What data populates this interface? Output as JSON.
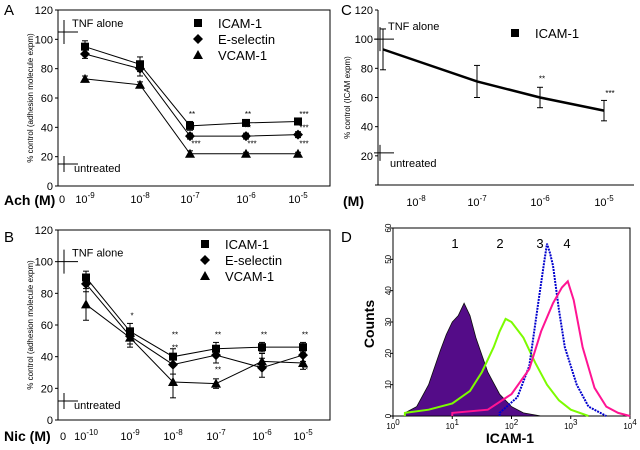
{
  "chart_data": [
    {
      "panel": "A",
      "type": "line",
      "ylabel": "% control (adhesion molecule expm)",
      "xlabel": "Ach (M)",
      "x_tick_labels": [
        {
          "base": "0",
          "exp": ""
        },
        {
          "base": "10",
          "exp": "-9"
        },
        {
          "base": "10",
          "exp": "-8"
        },
        {
          "base": "10",
          "exp": "-7"
        },
        {
          "base": "10",
          "exp": "-6"
        },
        {
          "base": "10",
          "exp": "-5"
        }
      ],
      "y_ticks": [
        0,
        20,
        40,
        60,
        80,
        100,
        120
      ],
      "ylim": [
        0,
        120
      ],
      "x": [
        -9,
        -8,
        -7,
        -6,
        -5
      ],
      "series": [
        {
          "name": "ICAM-1",
          "marker": "square",
          "values": [
            95,
            83,
            41,
            43,
            44
          ],
          "err": [
            4,
            5,
            3,
            2,
            2
          ]
        },
        {
          "name": "E-selectin",
          "marker": "diamond",
          "values": [
            90,
            80,
            34,
            34,
            35
          ],
          "err": [
            3,
            5,
            2,
            2,
            2
          ]
        },
        {
          "name": "VCAM-1",
          "marker": "triangle",
          "values": [
            73,
            69,
            22,
            22,
            22
          ],
          "err": [
            2,
            2,
            2,
            1,
            1
          ]
        }
      ],
      "reference_labels": {
        "tnf_alone": "TNF alone",
        "tnf_value": 105,
        "untreated": "untreated",
        "untreated_value": 15
      },
      "significance": [
        {
          "x": -7,
          "label": "**",
          "at": 47
        },
        {
          "x": -6,
          "label": "**",
          "at": 47
        },
        {
          "x": -5,
          "label": "***",
          "at": 47
        },
        {
          "x": -7,
          "label": "**",
          "at": 38
        },
        {
          "x": -6,
          "label": "**",
          "at": 38
        },
        {
          "x": -5,
          "label": "***",
          "at": 38
        },
        {
          "x": -7,
          "label": "***",
          "at": 27
        },
        {
          "x": -6,
          "label": "***",
          "at": 27
        },
        {
          "x": -5,
          "label": "***",
          "at": 27
        }
      ],
      "legend_position": "top-right"
    },
    {
      "panel": "B",
      "type": "line",
      "ylabel": "% control (adhesion molecule expm)",
      "xlabel": "Nic (M)",
      "x_tick_labels": [
        {
          "base": "0",
          "exp": ""
        },
        {
          "base": "10",
          "exp": "-10"
        },
        {
          "base": "10",
          "exp": "-9"
        },
        {
          "base": "10",
          "exp": "-8"
        },
        {
          "base": "10",
          "exp": "-7"
        },
        {
          "base": "10",
          "exp": "-6"
        },
        {
          "base": "10",
          "exp": "-5"
        }
      ],
      "y_ticks": [
        0,
        20,
        40,
        60,
        80,
        100,
        120
      ],
      "ylim": [
        0,
        120
      ],
      "x": [
        -10,
        -9,
        -8,
        -7,
        -6,
        -5
      ],
      "series": [
        {
          "name": "ICAM-1",
          "marker": "square",
          "values": [
            90,
            56,
            40,
            45,
            46,
            46
          ],
          "err": [
            4,
            5,
            5,
            4,
            3,
            3
          ]
        },
        {
          "name": "E-selectin",
          "marker": "diamond",
          "values": [
            86,
            53,
            35,
            41,
            33,
            41
          ],
          "err": [
            5,
            5,
            6,
            5,
            6,
            4
          ]
        },
        {
          "name": "VCAM-1",
          "marker": "triangle",
          "values": [
            73,
            52,
            24,
            23,
            37,
            36
          ],
          "err": [
            10,
            6,
            10,
            3,
            5,
            4
          ]
        }
      ],
      "reference_labels": {
        "tnf_alone": "TNF alone",
        "tnf_value": 100,
        "untreated": "untreated",
        "untreated_value": 12
      },
      "significance": [
        {
          "x": -9,
          "label": "*",
          "at": 64
        },
        {
          "x": -8,
          "label": "**",
          "at": 52
        },
        {
          "x": -7,
          "label": "**",
          "at": 52
        },
        {
          "x": -6,
          "label": "**",
          "at": 52
        },
        {
          "x": -5,
          "label": "**",
          "at": 52
        },
        {
          "x": -8,
          "label": "**",
          "at": 44
        },
        {
          "x": -7,
          "label": "**",
          "at": 30
        },
        {
          "x": -5,
          "label": "**",
          "at": 30
        }
      ],
      "legend_position": "top-right"
    },
    {
      "panel": "C",
      "type": "line",
      "ylabel": "% control (ICAM expm)",
      "xlabel": "(M)",
      "x_tick_labels": [
        {
          "base": "10",
          "exp": "-8"
        },
        {
          "base": "10",
          "exp": "-7"
        },
        {
          "base": "10",
          "exp": "-6"
        },
        {
          "base": "10",
          "exp": "-5"
        }
      ],
      "y_ticks": [
        0,
        20,
        40,
        60,
        80,
        100,
        120
      ],
      "ylim": [
        0,
        120
      ],
      "x": [
        -8.5,
        -7,
        -6,
        -5
      ],
      "series": [
        {
          "name": "ICAM-1",
          "marker": "square",
          "values": [
            93,
            71,
            60,
            51
          ],
          "err": [
            14,
            11,
            7,
            7
          ]
        }
      ],
      "reference_labels": {
        "tnf_alone": "TNF alone",
        "tnf_value": 100,
        "untreated": "untreated",
        "untreated_value": 22
      },
      "significance": [
        {
          "x": -6,
          "label": "**",
          "at": 71
        },
        {
          "x": -5,
          "label": "***",
          "at": 61
        }
      ],
      "legend_position": "top-right"
    },
    {
      "panel": "D",
      "type": "area",
      "xlabel": "ICAM-1",
      "ylabel": "Counts",
      "x_scale": "log",
      "x_ticks": [
        {
          "base": "10",
          "exp": "0"
        },
        {
          "base": "10",
          "exp": "1"
        },
        {
          "base": "10",
          "exp": "2"
        },
        {
          "base": "10",
          "exp": "3"
        },
        {
          "base": "10",
          "exp": "4"
        }
      ],
      "y_ticks": [
        0,
        10,
        20,
        30,
        40,
        50,
        60
      ],
      "ylim": [
        0,
        60
      ],
      "histograms": [
        {
          "label": "1",
          "color": "#4b0082",
          "fill": true,
          "log_x": [
            0.2,
            0.4,
            0.6,
            0.8,
            0.9,
            1.0,
            1.1,
            1.2,
            1.3,
            1.4,
            1.6,
            1.8,
            2.0,
            2.2,
            2.5
          ],
          "counts": [
            1,
            3,
            10,
            21,
            26,
            30,
            32,
            36,
            32,
            25,
            14,
            7,
            3,
            1,
            0
          ]
        },
        {
          "label": "2",
          "color": "#7cfc00",
          "fill": false,
          "log_x": [
            0.2,
            0.6,
            1.0,
            1.3,
            1.5,
            1.7,
            1.8,
            1.9,
            2.0,
            2.2,
            2.4,
            2.6,
            2.8,
            3.0,
            3.3
          ],
          "counts": [
            1,
            2,
            4,
            8,
            14,
            22,
            27,
            31,
            30,
            25,
            17,
            10,
            5,
            2,
            0
          ]
        },
        {
          "label": "3",
          "color": "#0000cd",
          "fill": false,
          "log_x": [
            1.8,
            2.1,
            2.3,
            2.45,
            2.55,
            2.6,
            2.65,
            2.7,
            2.8,
            2.9,
            3.1,
            3.3,
            3.6
          ],
          "counts": [
            1,
            6,
            16,
            36,
            49,
            55,
            52,
            48,
            34,
            22,
            10,
            3,
            0
          ]
        },
        {
          "label": "4",
          "color": "#ff1493",
          "fill": false,
          "log_x": [
            1.0,
            1.6,
            2.0,
            2.3,
            2.5,
            2.7,
            2.85,
            2.95,
            3.05,
            3.2,
            3.4,
            3.6,
            3.8,
            4.0
          ],
          "counts": [
            1,
            2,
            7,
            15,
            27,
            36,
            41,
            43,
            37,
            22,
            9,
            3,
            1,
            0
          ]
        }
      ]
    }
  ]
}
